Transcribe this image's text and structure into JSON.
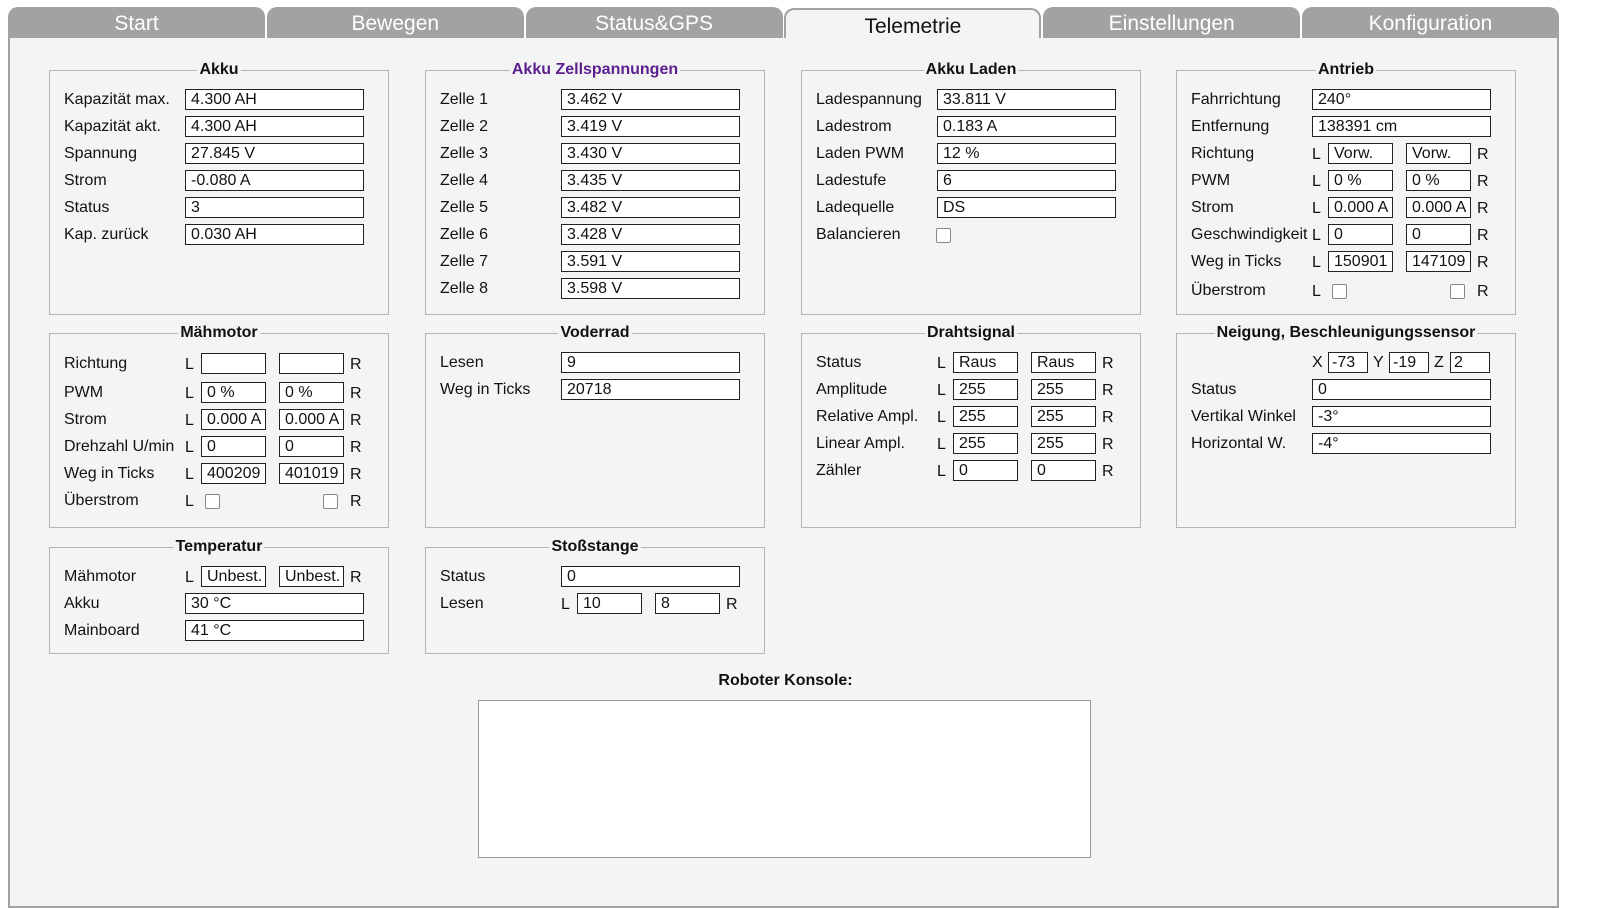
{
  "tabs": [
    "Start",
    "Bewegen",
    "Status&GPS",
    "Telemetrie",
    "Einstellungen",
    "Konfiguration"
  ],
  "active_tab": "Telemetrie",
  "legend_accent": "#5b1f8f",
  "side_labels": {
    "left": "L",
    "right": "R"
  },
  "panels": [
    {
      "title": "Akku",
      "rows": [
        {
          "type": "single",
          "label": "Kapazität max.",
          "value": "4.300 AH"
        },
        {
          "type": "single",
          "label": "Kapazität akt.",
          "value": "4.300 AH"
        },
        {
          "type": "single",
          "label": "Spannung",
          "value": "27.845 V"
        },
        {
          "type": "single",
          "label": "Strom",
          "value": "-0.080 A"
        },
        {
          "type": "single",
          "label": "Status",
          "value": "3"
        },
        {
          "type": "single",
          "label": "Kap. zurück",
          "value": "0.030 AH"
        }
      ]
    },
    {
      "title": "Akku Zellspannungen",
      "accent": true,
      "rows": [
        {
          "type": "single",
          "label": "Zelle 1",
          "value": "3.462 V"
        },
        {
          "type": "single",
          "label": "Zelle 2",
          "value": "3.419 V"
        },
        {
          "type": "single",
          "label": "Zelle 3",
          "value": "3.430 V"
        },
        {
          "type": "single",
          "label": "Zelle 4",
          "value": "3.435 V"
        },
        {
          "type": "single",
          "label": "Zelle 5",
          "value": "3.482 V"
        },
        {
          "type": "single",
          "label": "Zelle 6",
          "value": "3.428 V"
        },
        {
          "type": "single",
          "label": "Zelle 7",
          "value": "3.591 V"
        },
        {
          "type": "single",
          "label": "Zelle 8",
          "value": "3.598 V"
        }
      ]
    },
    {
      "title": "Akku Laden",
      "rows": [
        {
          "type": "single",
          "label": "Ladespannung",
          "value": "33.811 V"
        },
        {
          "type": "single",
          "label": "Ladestrom",
          "value": "0.183 A"
        },
        {
          "type": "single",
          "label": "Laden PWM",
          "value": "12 %"
        },
        {
          "type": "single",
          "label": "Ladestufe",
          "value": "6"
        },
        {
          "type": "single",
          "label": "Ladequelle",
          "value": "DS"
        },
        {
          "type": "check",
          "label": "Balancieren",
          "checked": false
        }
      ]
    },
    {
      "title": "Antrieb",
      "rows": [
        {
          "type": "single",
          "label": "Fahrrichtung",
          "value": "240°"
        },
        {
          "type": "single",
          "label": "Entfernung",
          "value": "138391 cm"
        },
        {
          "type": "pair",
          "label": "Richtung",
          "left": "Vorw.",
          "right": "Vorw."
        },
        {
          "type": "pair",
          "label": "PWM",
          "left": "0 %",
          "right": "0 %"
        },
        {
          "type": "pair",
          "label": "Strom",
          "left": "0.000 A",
          "right": "0.000 A"
        },
        {
          "type": "pair",
          "label": "Geschwindigkeit",
          "left": "0",
          "right": "0"
        },
        {
          "type": "pair",
          "label": "Weg in Ticks",
          "left": "150901",
          "right": "147109"
        },
        {
          "type": "checkpair",
          "label": "Überstrom",
          "left": false,
          "right": false
        }
      ]
    },
    {
      "title": "Mähmotor",
      "rows": [
        {
          "type": "pair",
          "label": "Richtung",
          "left": "",
          "right": ""
        },
        {
          "type": "pair",
          "label": "PWM",
          "left": "0 %",
          "right": "0 %"
        },
        {
          "type": "pair",
          "label": "Strom",
          "left": "0.000 A",
          "right": "0.000 A"
        },
        {
          "type": "pair",
          "label": "Drehzahl U/min",
          "left": "0",
          "right": "0"
        },
        {
          "type": "pair",
          "label": "Weg in Ticks",
          "left": "400209",
          "right": "401019"
        },
        {
          "type": "checkpair",
          "label": "Überstrom",
          "left": false,
          "right": false
        }
      ]
    },
    {
      "title": "Voderrad",
      "rows": [
        {
          "type": "single",
          "label": "Lesen",
          "value": "9"
        },
        {
          "type": "single",
          "label": "Weg in Ticks",
          "value": "20718"
        }
      ]
    },
    {
      "title": "Drahtsignal",
      "rows": [
        {
          "type": "pair",
          "label": "Status",
          "left": "Raus",
          "right": "Raus"
        },
        {
          "type": "pair",
          "label": "Amplitude",
          "left": "255",
          "right": "255"
        },
        {
          "type": "pair",
          "label": "Relative Ampl.",
          "left": "255",
          "right": "255"
        },
        {
          "type": "pair",
          "label": "Linear Ampl.",
          "left": "255",
          "right": "255"
        },
        {
          "type": "pair",
          "label": "Zähler",
          "left": "0",
          "right": "0"
        }
      ]
    },
    {
      "title": "Neigung, Beschleunigungssensor",
      "rows": [
        {
          "type": "xyz",
          "label": "",
          "x_label": "X",
          "x": "-73",
          "y_label": "Y",
          "y": "-19",
          "z_label": "Z",
          "z": "2"
        },
        {
          "type": "single",
          "label": "Status",
          "value": "0"
        },
        {
          "type": "single",
          "label": "Vertikal Winkel",
          "value": "-3°"
        },
        {
          "type": "single",
          "label": "Horizontal W.",
          "value": "-4°"
        }
      ]
    },
    {
      "title": "Temperatur",
      "rows": [
        {
          "type": "pair",
          "label": "Mähmotor",
          "left": "Unbest.",
          "right": "Unbest."
        },
        {
          "type": "single",
          "label": "Akku",
          "value": "30 °C"
        },
        {
          "type": "single",
          "label": "Mainboard",
          "value": "41 °C"
        }
      ]
    },
    {
      "title": "Stoßstange",
      "rows": [
        {
          "type": "single",
          "label": "Status",
          "value": "0"
        },
        {
          "type": "pair",
          "label": "Lesen",
          "left": "10",
          "right": "8"
        }
      ]
    }
  ],
  "console": {
    "label": "Roboter Konsole:",
    "content": ""
  }
}
